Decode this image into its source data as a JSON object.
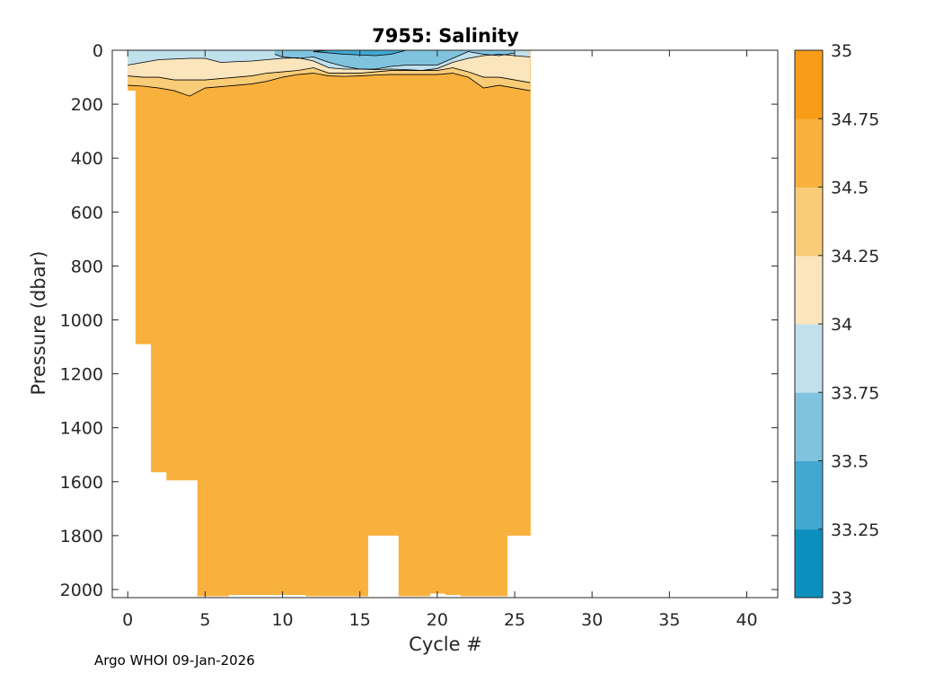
{
  "chart_data": {
    "type": "heatmap",
    "subtype": "filled-contour section",
    "title": "7955:  Salinity",
    "xlabel": "Cycle #",
    "ylabel": "Pressure (dbar)",
    "xlim": [
      -1,
      42
    ],
    "ylim": [
      2030,
      0
    ],
    "y_reversed": true,
    "x_ticks": [
      0,
      5,
      10,
      15,
      20,
      25,
      30,
      35,
      40
    ],
    "y_ticks": [
      0,
      200,
      400,
      600,
      800,
      1000,
      1200,
      1400,
      1600,
      1800,
      2000
    ],
    "grid": false,
    "colorbar": {
      "levels": [
        33,
        33.25,
        33.5,
        33.75,
        34,
        34.25,
        34.5,
        34.75,
        35
      ],
      "colors": [
        "#0a8fbe",
        "#42a8d1",
        "#80c3df",
        "#c0e0ec",
        "#fbe5bd",
        "#f9cc78",
        "#f9b13e",
        "#f99c18"
      ],
      "tick_labels": [
        "33",
        "33.25",
        "33.5",
        "33.75",
        "34",
        "34.25",
        "34.5",
        "34.75",
        "35"
      ]
    },
    "profiles": {
      "cycles": [
        0,
        1,
        2,
        3,
        4,
        5,
        6,
        7,
        8,
        9,
        10,
        11,
        12,
        13,
        14,
        15,
        16,
        17,
        18,
        19,
        20,
        21,
        22,
        23,
        24,
        25,
        26
      ],
      "max_pressure": [
        150,
        1090,
        1565,
        1595,
        1595,
        2025,
        2025,
        2020,
        2020,
        2020,
        2020,
        2020,
        2025,
        2025,
        2025,
        2025,
        1800,
        1800,
        2025,
        2025,
        2015,
        2020,
        2025,
        2025,
        2025,
        1800,
        1800
      ]
    },
    "isohalines": {
      "34.5": [
        [
          0,
          130
        ],
        [
          1,
          133
        ],
        [
          2,
          140
        ],
        [
          3,
          150
        ],
        [
          4,
          170
        ],
        [
          5,
          140
        ],
        [
          6,
          135
        ],
        [
          7,
          130
        ],
        [
          8,
          125
        ],
        [
          9,
          115
        ],
        [
          10,
          100
        ],
        [
          11,
          90
        ],
        [
          12,
          85
        ],
        [
          13,
          95
        ],
        [
          14,
          97
        ],
        [
          15,
          95
        ],
        [
          16,
          92
        ],
        [
          17,
          90
        ],
        [
          18,
          90
        ],
        [
          19,
          90
        ],
        [
          20,
          90
        ],
        [
          21,
          85
        ],
        [
          22,
          100
        ],
        [
          23,
          140
        ],
        [
          24,
          130
        ],
        [
          25,
          140
        ],
        [
          26,
          150
        ]
      ],
      "34.25": [
        [
          0,
          95
        ],
        [
          1,
          100
        ],
        [
          2,
          100
        ],
        [
          3,
          110
        ],
        [
          4,
          110
        ],
        [
          5,
          110
        ],
        [
          6,
          105
        ],
        [
          7,
          100
        ],
        [
          8,
          95
        ],
        [
          9,
          85
        ],
        [
          10,
          80
        ],
        [
          11,
          75
        ],
        [
          12,
          65
        ],
        [
          13,
          85
        ],
        [
          14,
          85
        ],
        [
          15,
          85
        ],
        [
          16,
          80
        ],
        [
          17,
          75
        ],
        [
          18,
          75
        ],
        [
          19,
          75
        ],
        [
          20,
          75
        ],
        [
          21,
          65
        ],
        [
          22,
          80
        ],
        [
          23,
          100
        ],
        [
          24,
          100
        ],
        [
          25,
          110
        ],
        [
          26,
          120
        ]
      ],
      "34": [
        [
          0,
          55
        ],
        [
          2,
          35
        ],
        [
          4,
          30
        ],
        [
          5,
          30
        ],
        [
          6,
          45
        ],
        [
          8,
          40
        ],
        [
          10,
          30
        ],
        [
          11,
          28
        ],
        [
          12,
          40
        ],
        [
          13,
          65
        ],
        [
          14,
          70
        ],
        [
          15,
          70
        ],
        [
          16,
          72
        ],
        [
          17,
          70
        ],
        [
          18,
          72
        ],
        [
          19,
          75
        ],
        [
          20,
          68
        ],
        [
          21,
          45
        ],
        [
          22,
          30
        ],
        [
          23,
          20
        ],
        [
          24,
          15
        ],
        [
          25,
          20
        ],
        [
          26,
          25
        ]
      ],
      "33.75": [
        [
          9.5,
          15
        ],
        [
          10,
          25
        ],
        [
          11,
          30
        ],
        [
          12,
          25
        ],
        [
          13,
          45
        ],
        [
          14,
          60
        ],
        [
          15,
          70
        ],
        [
          16,
          70
        ],
        [
          17,
          60
        ],
        [
          18,
          55
        ],
        [
          19,
          55
        ],
        [
          20,
          55
        ],
        [
          21,
          30
        ],
        [
          22,
          5
        ],
        [
          23,
          15
        ],
        [
          24,
          20
        ],
        [
          25,
          10
        ]
      ],
      "33.5": [
        [
          12,
          5
        ],
        [
          13,
          10
        ],
        [
          14,
          15
        ],
        [
          16,
          20
        ],
        [
          17,
          15
        ],
        [
          18,
          0
        ]
      ],
      "33.25": [
        [
          12,
          5
        ],
        [
          13,
          0
        ]
      ]
    }
  },
  "footer": {
    "credit": "Argo WHOI 09-Jan-2026"
  }
}
